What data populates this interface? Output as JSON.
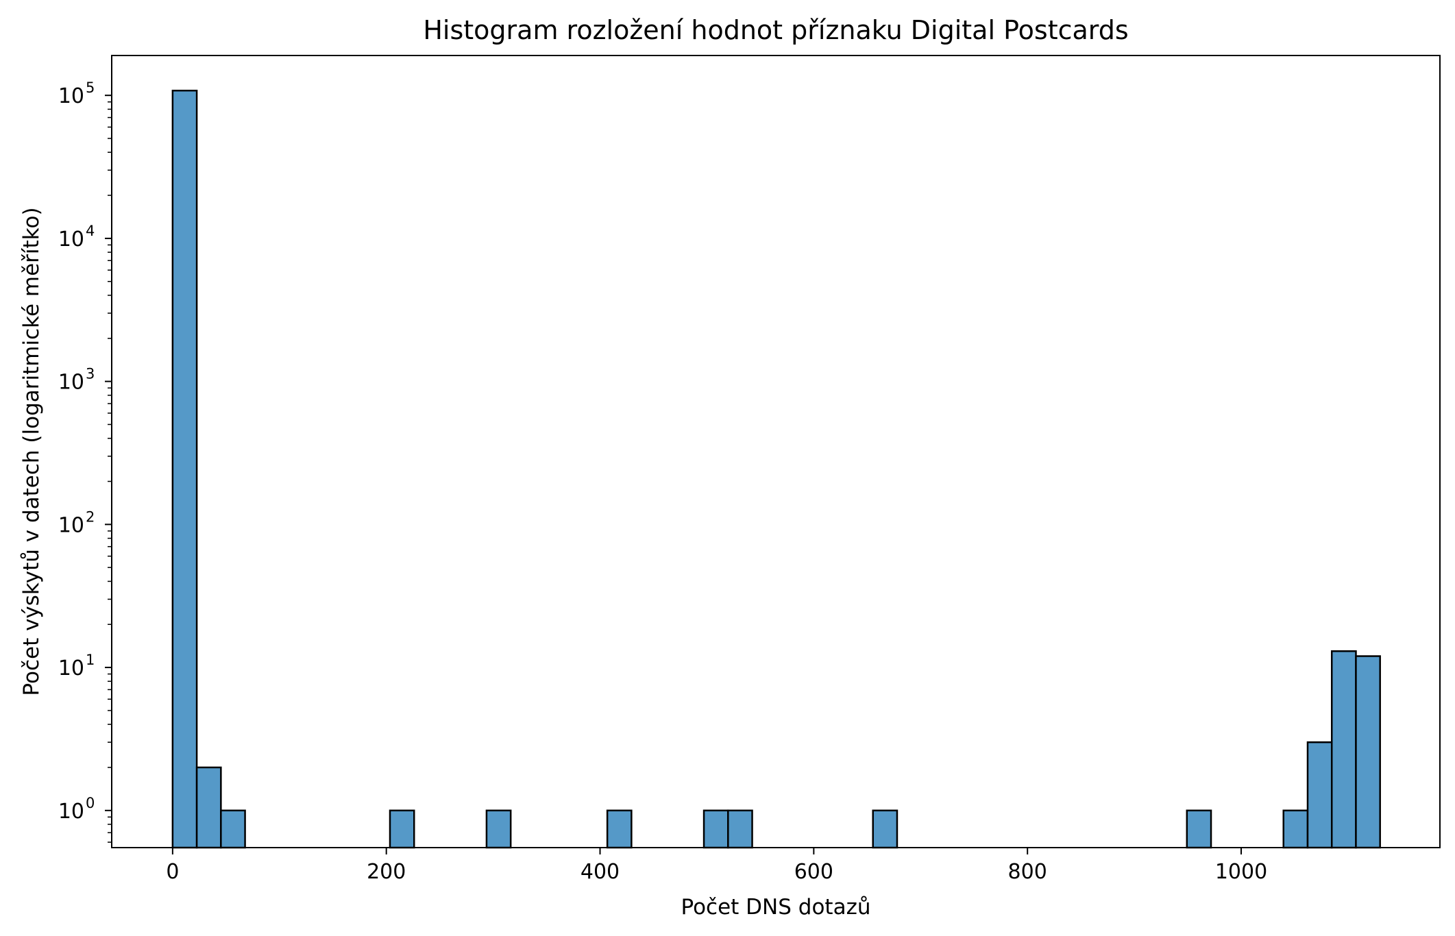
{
  "chart_data": {
    "type": "bar",
    "title": "Histogram rozložení hodnot příznaku Digital Postcards",
    "xlabel": "Počet DNS dotazů",
    "ylabel": "Počet výskytů v datech (logaritmické měřítko)",
    "yscale": "log",
    "xlim": [
      -57,
      1186
    ],
    "ylim": [
      0.55,
      190000
    ],
    "bin_width": 22.6,
    "bar_color": "#5599c8",
    "edge_color": "#000000",
    "grid": false,
    "x_ticks": [
      {
        "value": 0,
        "label": "0"
      },
      {
        "value": 200,
        "label": "200"
      },
      {
        "value": 400,
        "label": "400"
      },
      {
        "value": 600,
        "label": "600"
      },
      {
        "value": 800,
        "label": "800"
      },
      {
        "value": 1000,
        "label": "1000"
      }
    ],
    "y_ticks": [
      {
        "value": 1,
        "base": "10",
        "exp": "0"
      },
      {
        "value": 10,
        "base": "10",
        "exp": "1"
      },
      {
        "value": 100,
        "base": "10",
        "exp": "2"
      },
      {
        "value": 1000,
        "base": "10",
        "exp": "3"
      },
      {
        "value": 10000,
        "base": "10",
        "exp": "4"
      },
      {
        "value": 100000,
        "base": "10",
        "exp": "5"
      }
    ],
    "bins": [
      {
        "x0": 0,
        "x1": 22.6,
        "count": 108000
      },
      {
        "x0": 22.6,
        "x1": 45.2,
        "count": 2
      },
      {
        "x0": 45.2,
        "x1": 67.8,
        "count": 1
      },
      {
        "x0": 203.4,
        "x1": 226.0,
        "count": 1
      },
      {
        "x0": 293.8,
        "x1": 316.4,
        "count": 1
      },
      {
        "x0": 406.8,
        "x1": 429.4,
        "count": 1
      },
      {
        "x0": 497.2,
        "x1": 519.8,
        "count": 1
      },
      {
        "x0": 519.8,
        "x1": 542.4,
        "count": 1
      },
      {
        "x0": 655.4,
        "x1": 678.0,
        "count": 1
      },
      {
        "x0": 949.2,
        "x1": 971.8,
        "count": 1
      },
      {
        "x0": 1039.6,
        "x1": 1062.2,
        "count": 1
      },
      {
        "x0": 1062.2,
        "x1": 1084.8,
        "count": 3
      },
      {
        "x0": 1084.8,
        "x1": 1107.4,
        "count": 13
      },
      {
        "x0": 1107.4,
        "x1": 1130.0,
        "count": 12
      }
    ]
  }
}
